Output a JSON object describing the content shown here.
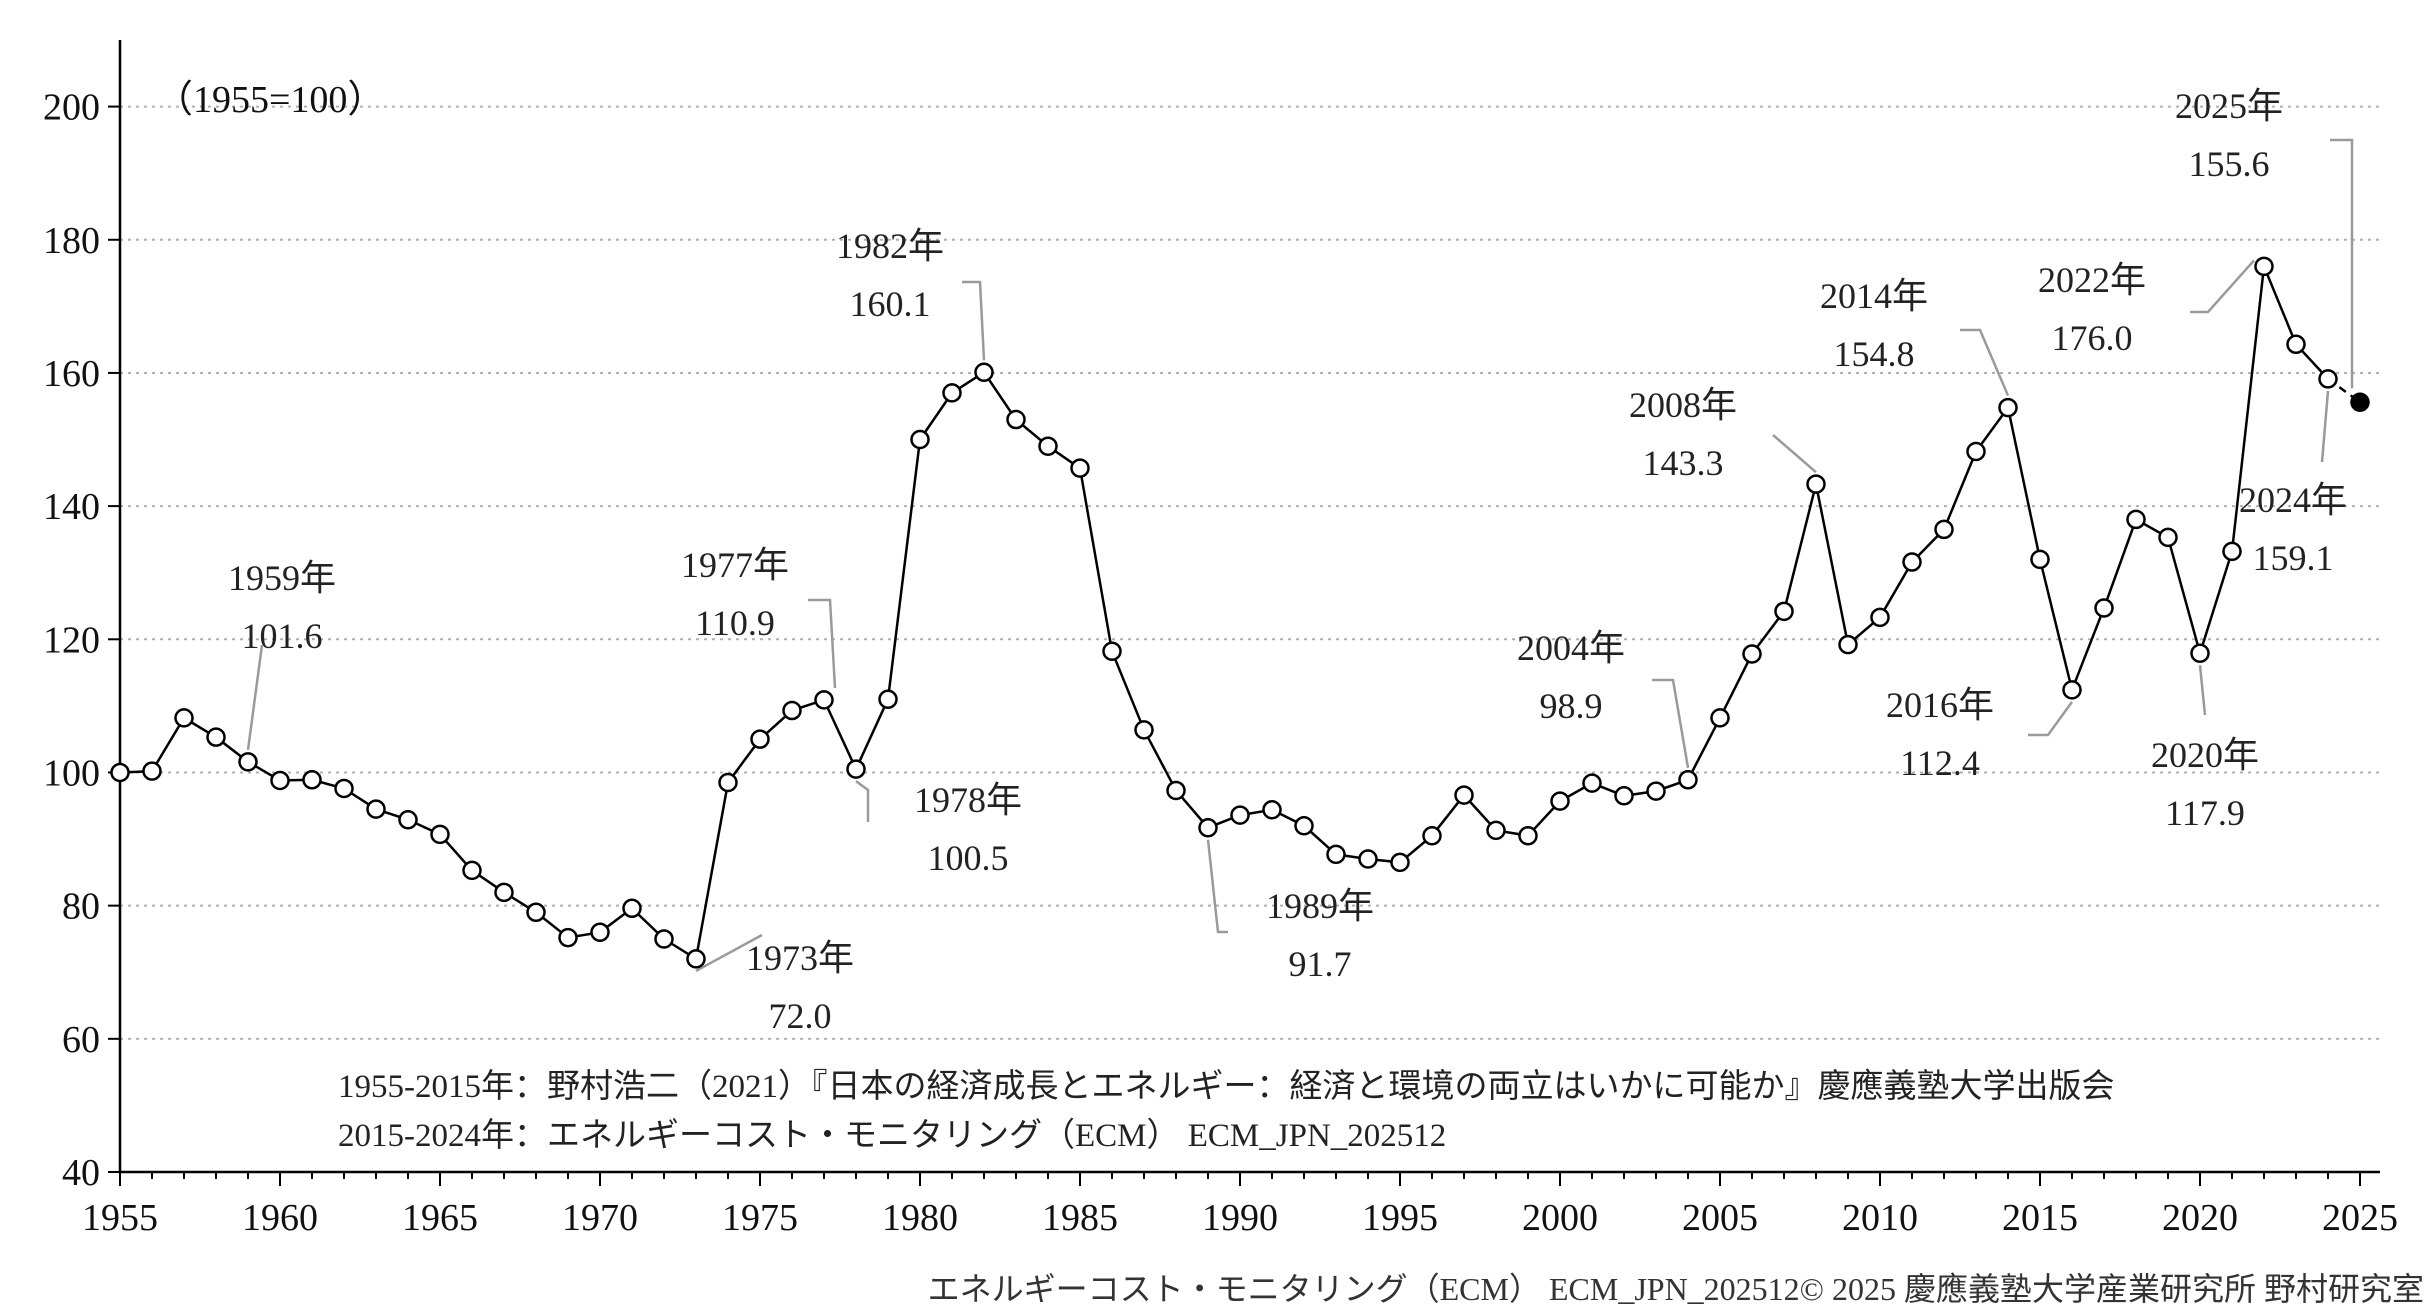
{
  "chart_data": {
    "type": "line",
    "unit_note": "（1955=100）",
    "ylim": [
      40,
      210
    ],
    "yticks": [
      40,
      60,
      80,
      100,
      120,
      140,
      160,
      180,
      200
    ],
    "xlim": [
      1955,
      2025.6
    ],
    "xticks": [
      1955,
      1960,
      1965,
      1970,
      1975,
      1980,
      1985,
      1990,
      1995,
      2000,
      2005,
      2010,
      2015,
      2020,
      2025
    ],
    "grid": "horizontal-dotted",
    "series": [
      {
        "x": [
          1955,
          1956,
          1957,
          1958,
          1959,
          1960,
          1961,
          1962,
          1963,
          1964,
          1965,
          1966,
          1967,
          1968,
          1969,
          1970,
          1971,
          1972,
          1973,
          1974,
          1975,
          1976,
          1977,
          1978,
          1979,
          1980,
          1981,
          1982,
          1983,
          1984,
          1985,
          1986,
          1987,
          1988,
          1989,
          1990,
          1991,
          1992,
          1993,
          1994,
          1995,
          1996,
          1997,
          1998,
          1999,
          2000,
          2001,
          2002,
          2003,
          2004,
          2005,
          2006,
          2007,
          2008,
          2009,
          2010,
          2011,
          2012,
          2013,
          2014,
          2015,
          2016,
          2017,
          2018,
          2019,
          2020,
          2021,
          2022,
          2023,
          2024
        ],
        "values": [
          100.0,
          100.2,
          108.2,
          105.3,
          101.6,
          98.8,
          98.9,
          97.6,
          94.5,
          92.9,
          90.7,
          85.3,
          82.0,
          79.0,
          75.2,
          76.0,
          79.6,
          75.0,
          72.0,
          98.5,
          105.0,
          109.3,
          110.9,
          100.5,
          111.0,
          150.0,
          157.0,
          160.1,
          153.0,
          149.0,
          145.7,
          118.2,
          106.4,
          97.3,
          91.7,
          93.6,
          94.4,
          92.0,
          87.7,
          87.0,
          86.5,
          90.5,
          96.6,
          91.3,
          90.5,
          95.7,
          98.4,
          96.5,
          97.2,
          98.9,
          108.2,
          117.8,
          124.2,
          143.3,
          119.2,
          123.3,
          131.6,
          136.5,
          148.2,
          154.8,
          132.0,
          112.4,
          124.7,
          138.0,
          135.3,
          117.9,
          133.2,
          176.0,
          164.3,
          159.1
        ]
      },
      {
        "x": [
          2024,
          2025
        ],
        "values": [
          159.1,
          155.6
        ],
        "style": "dashed-estimate"
      }
    ],
    "annotations": [
      {
        "year_label": "1959年",
        "value_label": "101.6"
      },
      {
        "year_label": "1973年",
        "value_label": "72.0"
      },
      {
        "year_label": "1977年",
        "value_label": "110.9"
      },
      {
        "year_label": "1978年",
        "value_label": "100.5"
      },
      {
        "year_label": "1982年",
        "value_label": "160.1"
      },
      {
        "year_label": "1989年",
        "value_label": "91.7"
      },
      {
        "year_label": "2004年",
        "value_label": "98.9"
      },
      {
        "year_label": "2008年",
        "value_label": "143.3"
      },
      {
        "year_label": "2014年",
        "value_label": "154.8"
      },
      {
        "year_label": "2016年",
        "value_label": "112.4"
      },
      {
        "year_label": "2020年",
        "value_label": "117.9"
      },
      {
        "year_label": "2022年",
        "value_label": "176.0"
      },
      {
        "year_label": "2024年",
        "value_label": "159.1"
      },
      {
        "year_label": "2025年",
        "value_label": "155.6"
      }
    ],
    "source_notes": [
      "1955-2015年：野村浩二（2021）『日本の経済成長とエネルギー：経済と環境の両立はいかに可能か』慶應義塾大学出版会",
      "2015-2024年：エネルギーコスト・モニタリング（ECM） ECM_JPN_202512"
    ],
    "footer": "エネルギーコスト・モニタリング（ECM） ECM_JPN_202512© 2025 慶應義塾大学産業研究所 野村研究室"
  }
}
